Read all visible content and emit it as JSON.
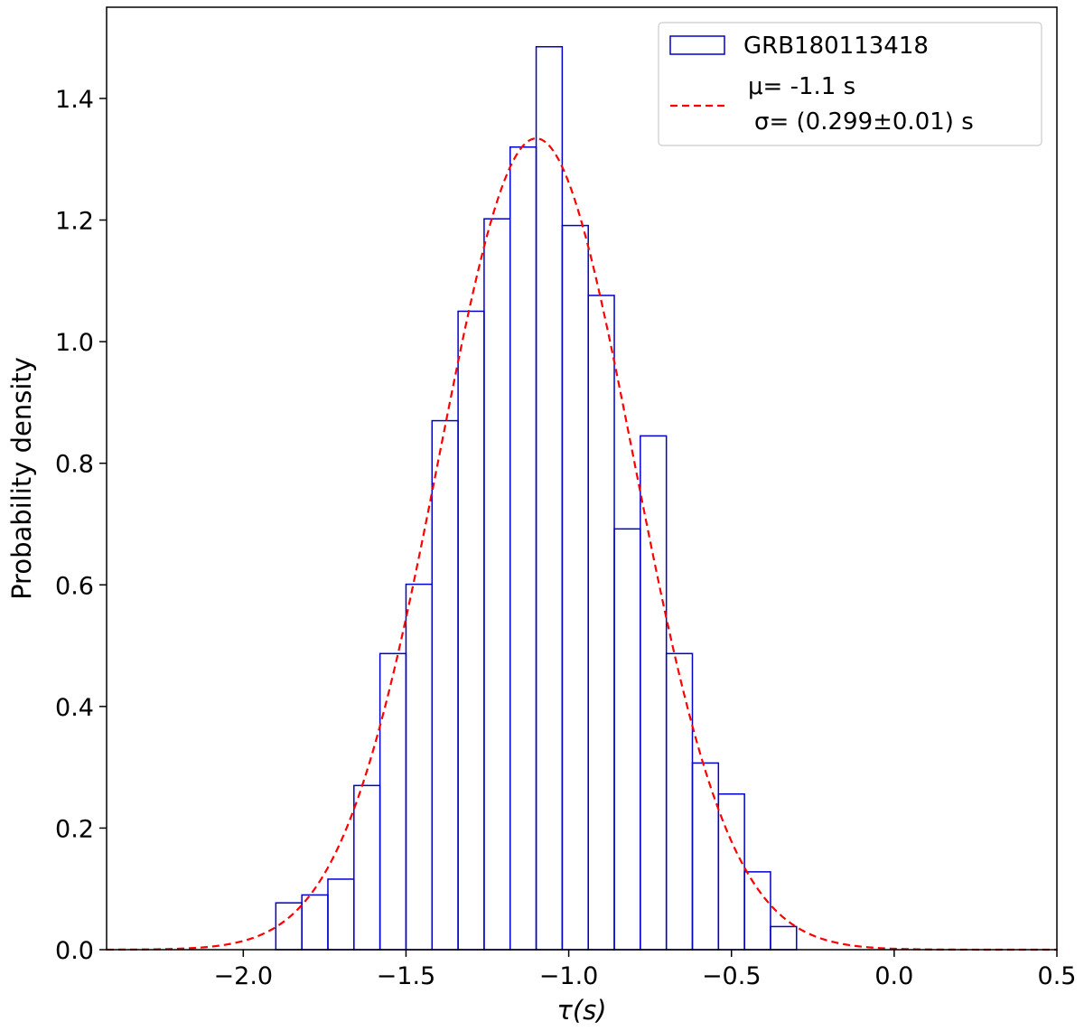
{
  "chart_data": {
    "type": "bar",
    "xlabel": "τ(s)",
    "ylabel": "Probability density",
    "xlim": [
      -2.42,
      0.5
    ],
    "ylim": [
      0.0,
      1.55
    ],
    "x_ticks": [
      -2.0,
      -1.5,
      -1.0,
      -0.5,
      0.0,
      0.5
    ],
    "x_tick_labels": [
      "−2.0",
      "−1.5",
      "−1.0",
      "−0.5",
      "0.0",
      "0.5"
    ],
    "y_ticks": [
      0.0,
      0.2,
      0.4,
      0.6,
      0.8,
      1.0,
      1.2,
      1.4
    ],
    "y_tick_labels": [
      "0.0",
      "0.2",
      "0.4",
      "0.6",
      "0.8",
      "1.0",
      "1.2",
      "1.4"
    ],
    "grid": false,
    "legend_position": "top-right",
    "histogram": {
      "name": "GRB180113418",
      "color": "#0000cc",
      "bin_edges": [
        -1.9,
        -1.82,
        -1.74,
        -1.66,
        -1.58,
        -1.5,
        -1.42,
        -1.34,
        -1.26,
        -1.18,
        -1.1,
        -1.02,
        -0.94,
        -0.86,
        -0.78,
        -0.7,
        -0.62,
        -0.54,
        -0.46,
        -0.38,
        -0.3
      ],
      "values": [
        0.077,
        0.09,
        0.116,
        0.27,
        0.487,
        0.601,
        0.87,
        1.05,
        1.202,
        1.32,
        1.485,
        1.191,
        1.076,
        0.692,
        0.845,
        0.487,
        0.307,
        0.256,
        0.128,
        0.038
      ]
    },
    "fit": {
      "type": "gaussian",
      "mu": -1.1,
      "sigma": 0.299,
      "color": "#ff0000",
      "dashed": true
    },
    "legend": {
      "hist_label": "GRB180113418",
      "fit_label_line1": "μ= -1.1 s",
      "fit_label_line2": "σ= (0.299±0.01) s"
    }
  }
}
